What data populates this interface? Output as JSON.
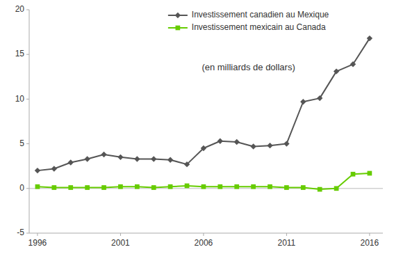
{
  "chart_data": {
    "type": "line",
    "subtitle": "(en milliards de dollars)",
    "x": [
      1996,
      1997,
      1998,
      1999,
      2000,
      2001,
      2002,
      2003,
      2004,
      2005,
      2006,
      2007,
      2008,
      2009,
      2010,
      2011,
      2012,
      2013,
      2014,
      2015,
      2016
    ],
    "series": [
      {
        "name": "Investissement canadien au Mexique",
        "color": "#555555",
        "marker": "diamond",
        "line_style": "solid",
        "values": [
          2.0,
          2.2,
          2.9,
          3.3,
          3.8,
          3.5,
          3.3,
          3.3,
          3.2,
          2.7,
          4.5,
          5.3,
          5.2,
          4.7,
          4.8,
          5.0,
          9.7,
          10.1,
          13.1,
          13.9,
          16.8
        ]
      },
      {
        "name": "Investissement mexicain au Canada",
        "color": "#66cc00",
        "marker": "square",
        "line_style": "solid",
        "values": [
          0.2,
          0.1,
          0.1,
          0.1,
          0.1,
          0.2,
          0.2,
          0.1,
          0.2,
          0.3,
          0.2,
          0.2,
          0.2,
          0.2,
          0.2,
          0.1,
          0.1,
          -0.1,
          0.0,
          1.6,
          1.7
        ]
      }
    ],
    "xlim": [
      1995.5,
      2016.8
    ],
    "xticks": [
      1996,
      2001,
      2006,
      2011,
      2016
    ],
    "ylim": [
      -5,
      20
    ],
    "yticks": [
      -5,
      0,
      5,
      10,
      15,
      20
    ],
    "grid": false,
    "legend": "top"
  }
}
